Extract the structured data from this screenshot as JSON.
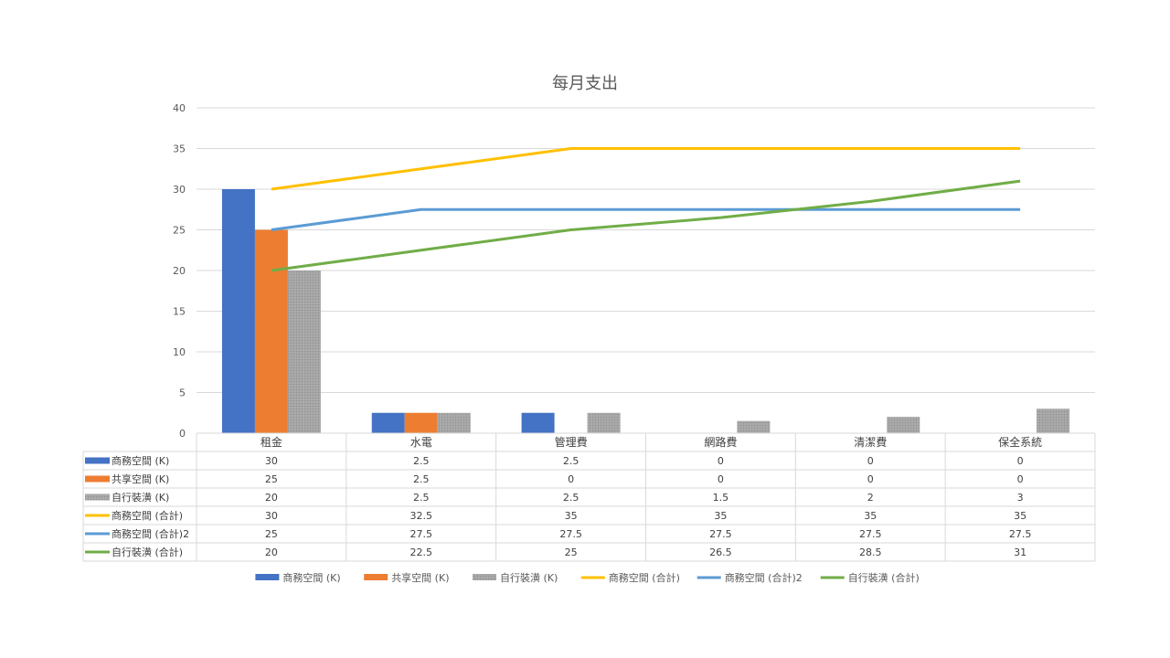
{
  "chart_data": {
    "type": "bar",
    "title": "每月支出",
    "categories": [
      "租金",
      "水電",
      "管理費",
      "網路費",
      "清潔費",
      "保全系統"
    ],
    "ylim": [
      0,
      40
    ],
    "yticks": [
      0,
      5,
      10,
      15,
      20,
      25,
      30,
      35,
      40
    ],
    "grid": true,
    "legend_position": "bottom",
    "data_table": true,
    "series": [
      {
        "name": "商務空間 (K)",
        "type": "bar",
        "color": "#4472C4",
        "values": [
          30,
          2.5,
          2.5,
          0,
          0,
          0
        ]
      },
      {
        "name": "共享空間 (K)",
        "type": "bar",
        "color": "#ED7D31",
        "values": [
          25,
          2.5,
          0,
          0,
          0,
          0
        ]
      },
      {
        "name": "自行裝潢 (K)",
        "type": "bar",
        "color": "#A5A5A5",
        "values": [
          20,
          2.5,
          2.5,
          1.5,
          2,
          3
        ]
      },
      {
        "name": "商務空間 (合計)",
        "type": "line",
        "color": "#FFC000",
        "values": [
          30,
          32.5,
          35,
          35,
          35,
          35
        ]
      },
      {
        "name": "商務空間 (合計)2",
        "type": "line",
        "color": "#5B9BD5",
        "values": [
          25,
          27.5,
          27.5,
          27.5,
          27.5,
          27.5
        ]
      },
      {
        "name": "自行裝潢 (合計)",
        "type": "line",
        "color": "#70AD47",
        "values": [
          20,
          22.5,
          25,
          26.5,
          28.5,
          31
        ]
      }
    ]
  }
}
